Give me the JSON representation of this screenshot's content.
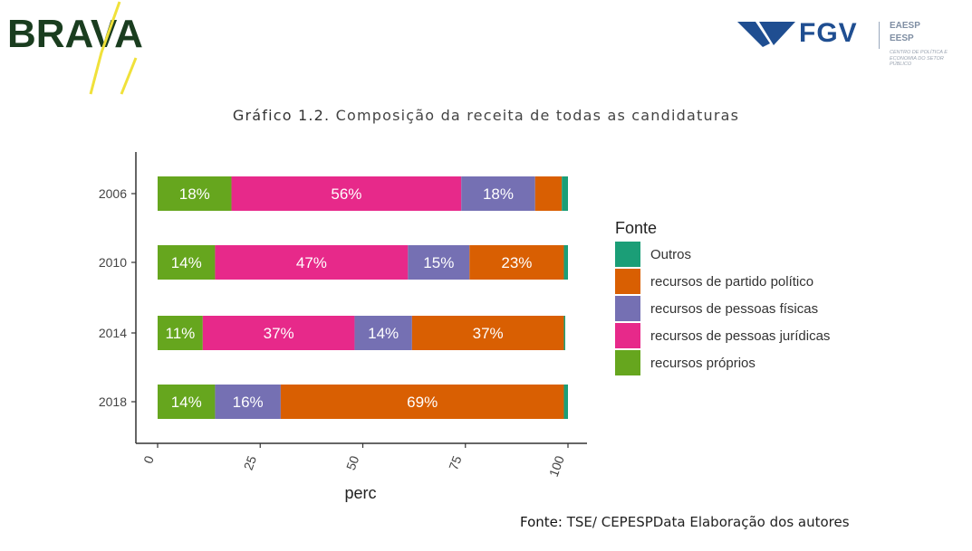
{
  "header": {
    "brava_logo_text": "BRAVA",
    "fgv_logo_text": "FGV",
    "school_lines": [
      "EAESP",
      "EESP"
    ],
    "school_subtitle": "CENTRO DE POLÍTICA E ECONOMIA DO SETOR PÚBLICO"
  },
  "figure": {
    "title_prefix": "Gráfico 1.2.",
    "title_text": "Composição da receita de todas as candidaturas"
  },
  "footer": {
    "source_label": "Fonte:",
    "source_text": "TSE/ CEPESPData Elaboração dos autores"
  },
  "colors": {
    "recursos_proprios": "#66a61e",
    "pessoas_juridicas": "#e7298a",
    "pessoas_fisicas": "#7570b3",
    "partido_politico": "#d95f02",
    "outros": "#1b9e77"
  },
  "chart_data": {
    "type": "bar",
    "orientation": "horizontal",
    "stacked": true,
    "categories": [
      "2006",
      "2010",
      "2014",
      "2018"
    ],
    "series": [
      {
        "name": "recursos próprios",
        "color_key": "recursos_proprios",
        "values": [
          18,
          14,
          11,
          14
        ],
        "labels": [
          "18%",
          "14%",
          "11%",
          "14%"
        ]
      },
      {
        "name": "recursos de pessoas jurídicas",
        "color_key": "pessoas_juridicas",
        "values": [
          56,
          47,
          37,
          0
        ],
        "labels": [
          "56%",
          "47%",
          "37%",
          ""
        ]
      },
      {
        "name": "recursos de pessoas físicas",
        "color_key": "pessoas_fisicas",
        "values": [
          18,
          15,
          14,
          16
        ],
        "labels": [
          "18%",
          "15%",
          "14%",
          "16%"
        ]
      },
      {
        "name": "recursos de partido político",
        "color_key": "partido_politico",
        "values": [
          6.5,
          23,
          37,
          69
        ],
        "labels": [
          "",
          "23%",
          "37%",
          "69%"
        ]
      },
      {
        "name": "Outros",
        "color_key": "outros",
        "values": [
          1.5,
          1,
          0.3,
          1
        ],
        "labels": [
          "",
          "",
          "",
          ""
        ]
      }
    ],
    "xlabel": "perc",
    "ylabel": "",
    "xlim": [
      0,
      100
    ],
    "xticks": [
      0,
      25,
      50,
      75,
      100
    ],
    "legend_title": "Fonte",
    "legend_order": [
      "Outros",
      "recursos de partido político",
      "recursos de pessoas físicas",
      "recursos de pessoas jurídicas",
      "recursos próprios"
    ],
    "legend_position": "right",
    "grid": false
  }
}
